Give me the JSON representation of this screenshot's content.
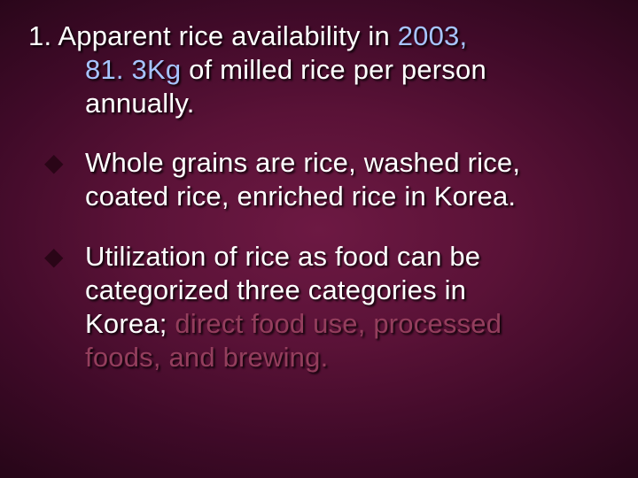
{
  "slide": {
    "background": {
      "type": "radial-gradient",
      "center_color": "#6d1943",
      "mid_color": "#5a1237",
      "outer_color": "#3f0a28",
      "edge_color": "#220515"
    },
    "text_shadow_color": "#000000",
    "item1": {
      "number": "1.",
      "line1_a": "Apparent rice availability in ",
      "year": "2003,",
      "kg": "81. 3Kg",
      "line2_rest": " of milled rice per person",
      "line3": "annually.",
      "heading_color": "#ffffff",
      "highlight_color": "#a7c4ff",
      "font_size_pt": 23
    },
    "bullets": [
      {
        "marker": "◆",
        "marker_color": "#2a0517",
        "line1": "Whole grains are rice, washed rice,",
        "line2": "coated rice, enriched rice in Korea.",
        "text_color": "#ffffff",
        "font_size_pt": 23
      },
      {
        "marker": "◆",
        "marker_color": "#2a0517",
        "lead_line1": "Utilization of rice as food can be",
        "lead_line2": "categorized three categories in",
        "lead_line3_a": "Korea",
        "semicolon": ";",
        "highlight_a": " direct food use, processed",
        "highlight_b": "foods, and brewing",
        "final_dot": ".",
        "text_color": "#ffffff",
        "highlight_color": "#943e5d",
        "font_size_pt": 23
      }
    ]
  }
}
